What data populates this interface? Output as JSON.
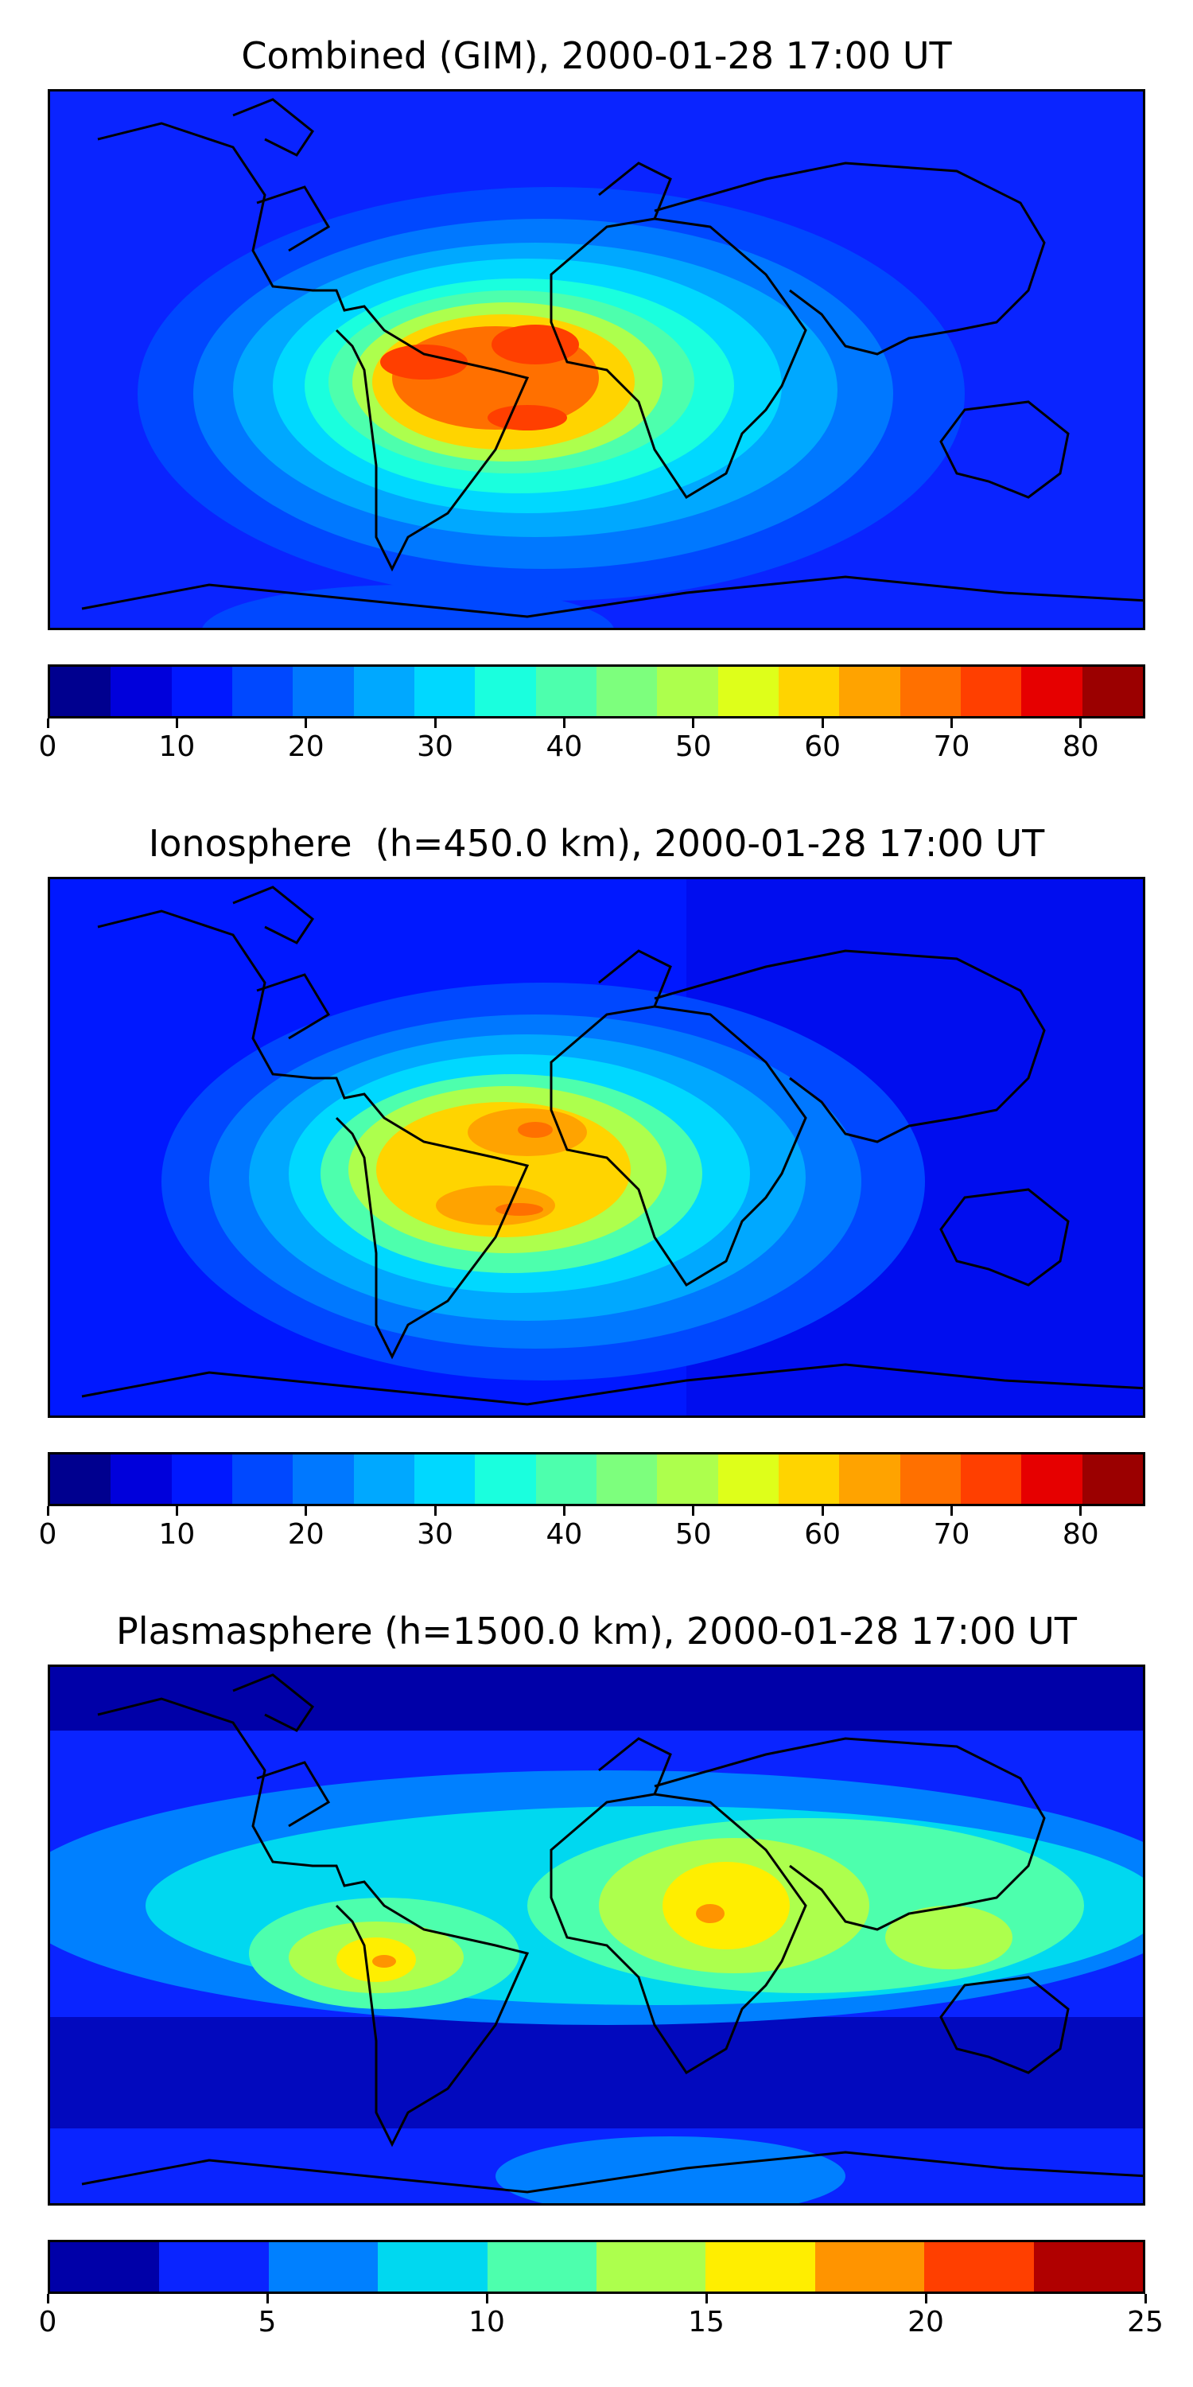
{
  "panels": [
    {
      "title": "Combined (GIM), 2000-01-28 17:00 UT",
      "colorbar": {
        "ticks": [
          "0",
          "10",
          "20",
          "30",
          "40",
          "50",
          "60",
          "70",
          "80"
        ],
        "tick_values": [
          0,
          10,
          20,
          30,
          40,
          50,
          60,
          70,
          80
        ],
        "vmin": 0,
        "vmax": 85,
        "colors": [
          "#00008f",
          "#0000db",
          "#0018ff",
          "#0048ff",
          "#0078ff",
          "#00a8ff",
          "#00d8ff",
          "#1affde",
          "#4dffad",
          "#7dff7d",
          "#adff4d",
          "#deff1a",
          "#ffd400",
          "#ffa300",
          "#ff7000",
          "#ff3f00",
          "#e60000",
          "#9b0000"
        ]
      }
    },
    {
      "title": "Ionosphere  (h=450.0 km), 2000-01-28 17:00 UT",
      "colorbar": {
        "ticks": [
          "0",
          "10",
          "20",
          "30",
          "40",
          "50",
          "60",
          "70",
          "80"
        ],
        "tick_values": [
          0,
          10,
          20,
          30,
          40,
          50,
          60,
          70,
          80
        ],
        "vmin": 0,
        "vmax": 85,
        "colors": [
          "#00008f",
          "#0000db",
          "#0018ff",
          "#0048ff",
          "#0078ff",
          "#00a8ff",
          "#00d8ff",
          "#1affde",
          "#4dffad",
          "#7dff7d",
          "#adff4d",
          "#deff1a",
          "#ffd400",
          "#ffa300",
          "#ff7000",
          "#ff3f00",
          "#e60000",
          "#9b0000"
        ]
      }
    },
    {
      "title": "Plasmasphere (h=1500.0 km), 2000-01-28 17:00 UT",
      "colorbar": {
        "ticks": [
          "0",
          "5",
          "10",
          "15",
          "20",
          "25"
        ],
        "tick_values": [
          0,
          5,
          10,
          15,
          20,
          25
        ],
        "vmin": 0,
        "vmax": 25,
        "colors": [
          "#0000a8",
          "#0a24ff",
          "#0080ff",
          "#00d8f0",
          "#4dffad",
          "#adff4d",
          "#ffee00",
          "#ff9400",
          "#ff3f00",
          "#b00000"
        ]
      }
    }
  ]
}
